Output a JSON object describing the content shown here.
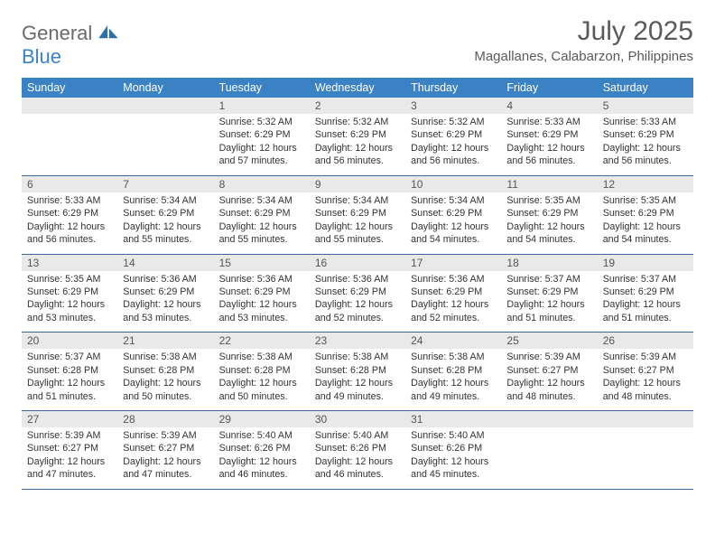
{
  "brand": {
    "general": "General",
    "blue": "Blue"
  },
  "title": "July 2025",
  "location": "Magallanes, Calabarzon, Philippines",
  "colors": {
    "header_bg": "#3b82c4",
    "daynum_bg": "#e9e9e9",
    "rule": "#3b6a9a",
    "text": "#333333",
    "muted": "#5a5a5a"
  },
  "weekdays": [
    "Sunday",
    "Monday",
    "Tuesday",
    "Wednesday",
    "Thursday",
    "Friday",
    "Saturday"
  ],
  "weeks": [
    {
      "nums": [
        "",
        "",
        "1",
        "2",
        "3",
        "4",
        "5"
      ],
      "cells": [
        null,
        null,
        {
          "sunrise": "5:32 AM",
          "sunset": "6:29 PM",
          "daylight": "12 hours and 57 minutes."
        },
        {
          "sunrise": "5:32 AM",
          "sunset": "6:29 PM",
          "daylight": "12 hours and 56 minutes."
        },
        {
          "sunrise": "5:32 AM",
          "sunset": "6:29 PM",
          "daylight": "12 hours and 56 minutes."
        },
        {
          "sunrise": "5:33 AM",
          "sunset": "6:29 PM",
          "daylight": "12 hours and 56 minutes."
        },
        {
          "sunrise": "5:33 AM",
          "sunset": "6:29 PM",
          "daylight": "12 hours and 56 minutes."
        }
      ]
    },
    {
      "nums": [
        "6",
        "7",
        "8",
        "9",
        "10",
        "11",
        "12"
      ],
      "cells": [
        {
          "sunrise": "5:33 AM",
          "sunset": "6:29 PM",
          "daylight": "12 hours and 56 minutes."
        },
        {
          "sunrise": "5:34 AM",
          "sunset": "6:29 PM",
          "daylight": "12 hours and 55 minutes."
        },
        {
          "sunrise": "5:34 AM",
          "sunset": "6:29 PM",
          "daylight": "12 hours and 55 minutes."
        },
        {
          "sunrise": "5:34 AM",
          "sunset": "6:29 PM",
          "daylight": "12 hours and 55 minutes."
        },
        {
          "sunrise": "5:34 AM",
          "sunset": "6:29 PM",
          "daylight": "12 hours and 54 minutes."
        },
        {
          "sunrise": "5:35 AM",
          "sunset": "6:29 PM",
          "daylight": "12 hours and 54 minutes."
        },
        {
          "sunrise": "5:35 AM",
          "sunset": "6:29 PM",
          "daylight": "12 hours and 54 minutes."
        }
      ]
    },
    {
      "nums": [
        "13",
        "14",
        "15",
        "16",
        "17",
        "18",
        "19"
      ],
      "cells": [
        {
          "sunrise": "5:35 AM",
          "sunset": "6:29 PM",
          "daylight": "12 hours and 53 minutes."
        },
        {
          "sunrise": "5:36 AM",
          "sunset": "6:29 PM",
          "daylight": "12 hours and 53 minutes."
        },
        {
          "sunrise": "5:36 AM",
          "sunset": "6:29 PM",
          "daylight": "12 hours and 53 minutes."
        },
        {
          "sunrise": "5:36 AM",
          "sunset": "6:29 PM",
          "daylight": "12 hours and 52 minutes."
        },
        {
          "sunrise": "5:36 AM",
          "sunset": "6:29 PM",
          "daylight": "12 hours and 52 minutes."
        },
        {
          "sunrise": "5:37 AM",
          "sunset": "6:29 PM",
          "daylight": "12 hours and 51 minutes."
        },
        {
          "sunrise": "5:37 AM",
          "sunset": "6:29 PM",
          "daylight": "12 hours and 51 minutes."
        }
      ]
    },
    {
      "nums": [
        "20",
        "21",
        "22",
        "23",
        "24",
        "25",
        "26"
      ],
      "cells": [
        {
          "sunrise": "5:37 AM",
          "sunset": "6:28 PM",
          "daylight": "12 hours and 51 minutes."
        },
        {
          "sunrise": "5:38 AM",
          "sunset": "6:28 PM",
          "daylight": "12 hours and 50 minutes."
        },
        {
          "sunrise": "5:38 AM",
          "sunset": "6:28 PM",
          "daylight": "12 hours and 50 minutes."
        },
        {
          "sunrise": "5:38 AM",
          "sunset": "6:28 PM",
          "daylight": "12 hours and 49 minutes."
        },
        {
          "sunrise": "5:38 AM",
          "sunset": "6:28 PM",
          "daylight": "12 hours and 49 minutes."
        },
        {
          "sunrise": "5:39 AM",
          "sunset": "6:27 PM",
          "daylight": "12 hours and 48 minutes."
        },
        {
          "sunrise": "5:39 AM",
          "sunset": "6:27 PM",
          "daylight": "12 hours and 48 minutes."
        }
      ]
    },
    {
      "nums": [
        "27",
        "28",
        "29",
        "30",
        "31",
        "",
        ""
      ],
      "cells": [
        {
          "sunrise": "5:39 AM",
          "sunset": "6:27 PM",
          "daylight": "12 hours and 47 minutes."
        },
        {
          "sunrise": "5:39 AM",
          "sunset": "6:27 PM",
          "daylight": "12 hours and 47 minutes."
        },
        {
          "sunrise": "5:40 AM",
          "sunset": "6:26 PM",
          "daylight": "12 hours and 46 minutes."
        },
        {
          "sunrise": "5:40 AM",
          "sunset": "6:26 PM",
          "daylight": "12 hours and 46 minutes."
        },
        {
          "sunrise": "5:40 AM",
          "sunset": "6:26 PM",
          "daylight": "12 hours and 45 minutes."
        },
        null,
        null
      ]
    }
  ],
  "labels": {
    "sunrise": "Sunrise:",
    "sunset": "Sunset:",
    "daylight": "Daylight:"
  }
}
